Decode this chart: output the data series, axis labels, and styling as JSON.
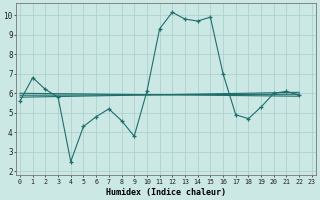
{
  "xlabel": "Humidex (Indice chaleur)",
  "x_ticks": [
    0,
    1,
    2,
    3,
    4,
    5,
    6,
    7,
    8,
    9,
    10,
    11,
    12,
    13,
    14,
    15,
    16,
    17,
    18,
    19,
    20,
    21,
    22,
    23
  ],
  "ylim": [
    1.8,
    10.6
  ],
  "xlim": [
    -0.3,
    23.3
  ],
  "bg_color": "#cce8e5",
  "grid_color": "#a8ceca",
  "line_color": "#1e6e6a",
  "line1_x": [
    0,
    1,
    2,
    3,
    4,
    5,
    6,
    7,
    8,
    9,
    10,
    11,
    12,
    13,
    14,
    15,
    16,
    17,
    18,
    19,
    20,
    21,
    22
  ],
  "line1_y": [
    5.6,
    6.8,
    6.2,
    5.8,
    2.5,
    4.3,
    4.8,
    5.2,
    4.6,
    3.8,
    6.1,
    9.3,
    10.15,
    9.8,
    9.7,
    9.9,
    7.0,
    4.9,
    4.7,
    5.3,
    6.0,
    6.1,
    5.9
  ],
  "line2_x": [
    0,
    22
  ],
  "line2_y": [
    6.0,
    5.85
  ],
  "line3_x": [
    0,
    22
  ],
  "line3_y": [
    5.8,
    6.05
  ],
  "line4_x": [
    0,
    22
  ],
  "line4_y": [
    5.9,
    5.95
  ]
}
